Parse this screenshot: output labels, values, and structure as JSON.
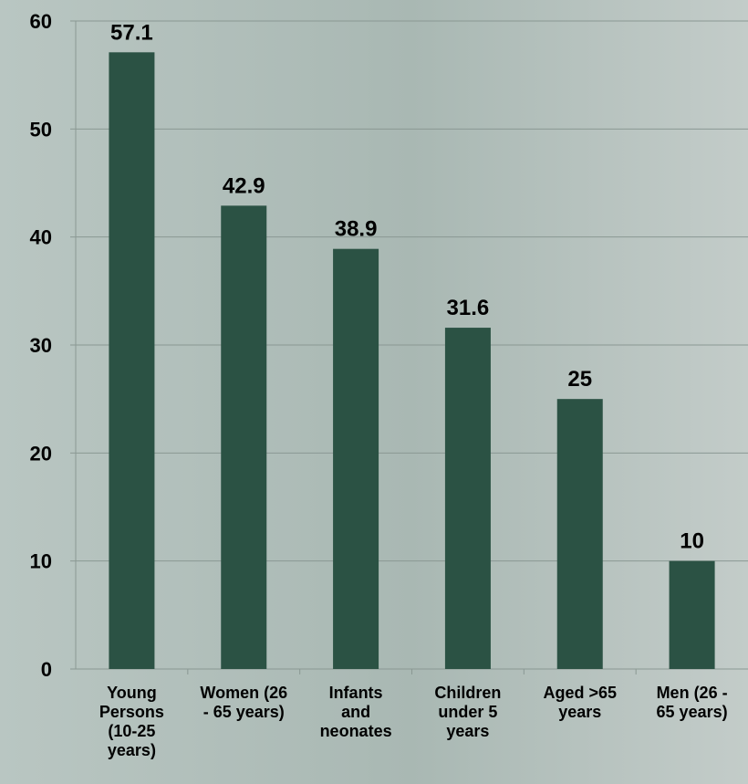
{
  "chart_data": {
    "type": "bar",
    "categories": [
      "Young Persons (10-25 years)",
      "Women (26 - 65 years)",
      "Infants and neonates",
      "Children under 5 years",
      "Aged >65 years",
      "Men (26 - 65 years)"
    ],
    "values": [
      57.1,
      42.9,
      38.9,
      31.6,
      25,
      10
    ],
    "color": "#2b5244",
    "ylim": [
      0,
      60
    ],
    "yticks": [
      0,
      10,
      20,
      30,
      40,
      50,
      60
    ],
    "grid": true
  }
}
